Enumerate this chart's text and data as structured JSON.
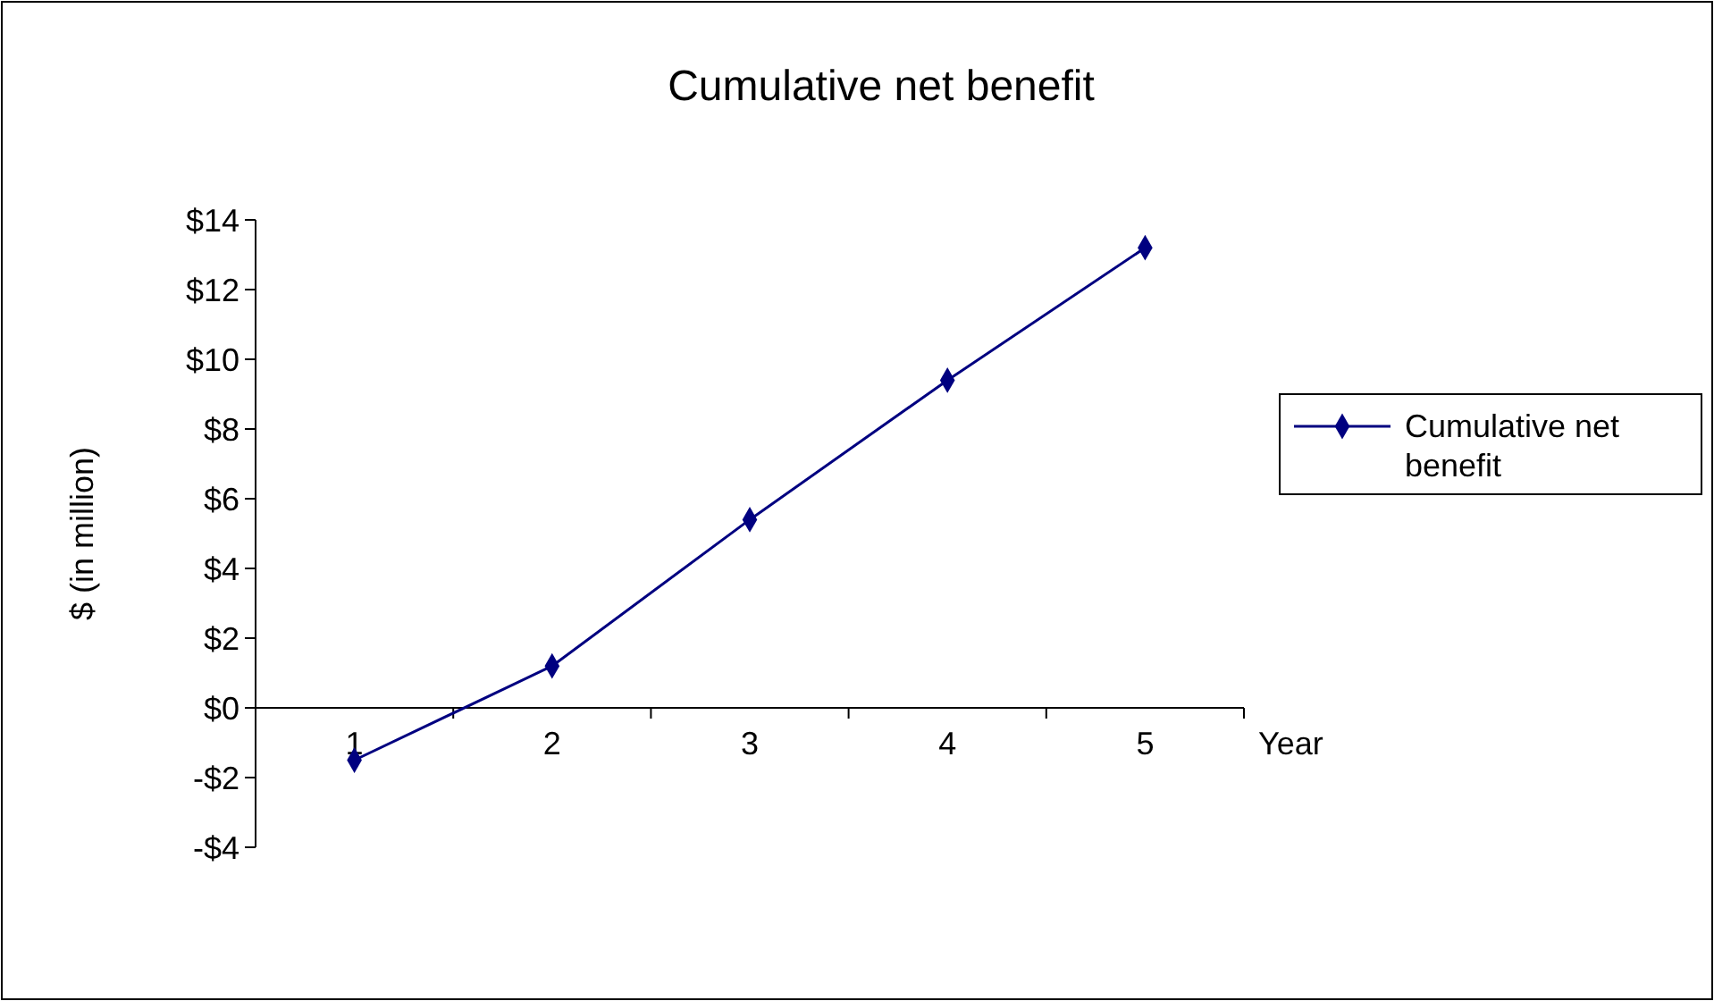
{
  "chart_data": {
    "type": "line",
    "title": "Cumulative net benefit",
    "xlabel": "Year",
    "ylabel": "$ (in million)",
    "categories": [
      "1",
      "2",
      "3",
      "4",
      "5"
    ],
    "series": [
      {
        "name": "Cumulative net benefit",
        "color": "#000080",
        "values": [
          -1.5,
          1.2,
          5.4,
          9.4,
          13.2
        ]
      }
    ],
    "ylim": [
      -4,
      14
    ],
    "yticks": [
      {
        "value": -4,
        "label": "-$4"
      },
      {
        "value": -2,
        "label": "-$2"
      },
      {
        "value": 0,
        "label": "$0"
      },
      {
        "value": 2,
        "label": "$2"
      },
      {
        "value": 4,
        "label": "$4"
      },
      {
        "value": 6,
        "label": "$6"
      },
      {
        "value": 8,
        "label": "$8"
      },
      {
        "value": 10,
        "label": "$10"
      },
      {
        "value": 12,
        "label": "$12"
      },
      {
        "value": 14,
        "label": "$14"
      }
    ],
    "grid": false,
    "legend": "right",
    "marker": "diamond",
    "line_style": "solid"
  }
}
